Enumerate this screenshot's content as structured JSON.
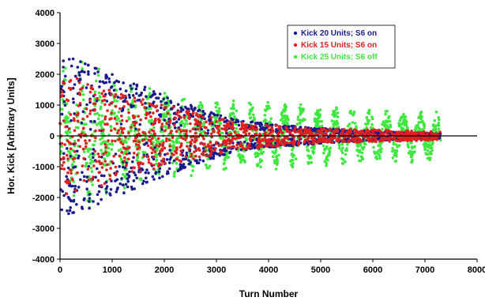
{
  "chart_data": {
    "type": "scatter",
    "title": "",
    "xlabel": "Turn Number",
    "ylabel": "Hor. Kick [Arbitrary Units]",
    "xlim": [
      0,
      8000
    ],
    "ylim": [
      -4000,
      4000
    ],
    "xticks": [
      "0",
      "1000",
      "2000",
      "3000",
      "4000",
      "5000",
      "6000",
      "7000",
      "8000"
    ],
    "yticks": [
      "4000",
      "3000",
      "2000",
      "1000",
      "0",
      "-1000",
      "-2000",
      "-3000",
      "-4000"
    ],
    "grid": false,
    "legend_position": "top-right",
    "series": [
      {
        "name": "Kick 20 Units; S6 on",
        "color": "#1a1a8c",
        "marker": "circle",
        "x_range": [
          0,
          7300
        ],
        "envelope": [
          [
            0,
            2600
          ],
          [
            500,
            2400
          ],
          [
            1000,
            2000
          ],
          [
            1500,
            1700
          ],
          [
            2000,
            1300
          ],
          [
            2500,
            1000
          ],
          [
            3000,
            700
          ],
          [
            3500,
            500
          ],
          [
            4000,
            380
          ],
          [
            5000,
            250
          ],
          [
            6000,
            150
          ],
          [
            7000,
            100
          ],
          [
            7300,
            80
          ]
        ],
        "oscillation_period_turns": 0
      },
      {
        "name": "Kick 15 Units; S6 on",
        "color": "#e02020",
        "marker": "circle",
        "x_range": [
          0,
          7300
        ],
        "envelope": [
          [
            0,
            2000
          ],
          [
            500,
            1800
          ],
          [
            1000,
            1500
          ],
          [
            1500,
            1250
          ],
          [
            2000,
            1000
          ],
          [
            2500,
            800
          ],
          [
            3000,
            600
          ],
          [
            3500,
            450
          ],
          [
            4000,
            350
          ],
          [
            5000,
            250
          ],
          [
            6000,
            200
          ],
          [
            7000,
            150
          ],
          [
            7300,
            130
          ]
        ],
        "oscillation_period_turns": 0
      },
      {
        "name": "Kick 25 Units; S6 off",
        "color": "#3ee83e",
        "marker": "circle",
        "x_range": [
          0,
          7300
        ],
        "envelope": [
          [
            0,
            3000
          ],
          [
            500,
            2500
          ],
          [
            1000,
            2000
          ],
          [
            1500,
            1700
          ],
          [
            2000,
            1500
          ],
          [
            2500,
            1300
          ],
          [
            3000,
            1200
          ],
          [
            3500,
            1150
          ],
          [
            4000,
            1100
          ],
          [
            5000,
            1000
          ],
          [
            6000,
            900
          ],
          [
            7000,
            850
          ],
          [
            7300,
            800
          ]
        ],
        "oscillation_period_turns": 325
      }
    ]
  }
}
